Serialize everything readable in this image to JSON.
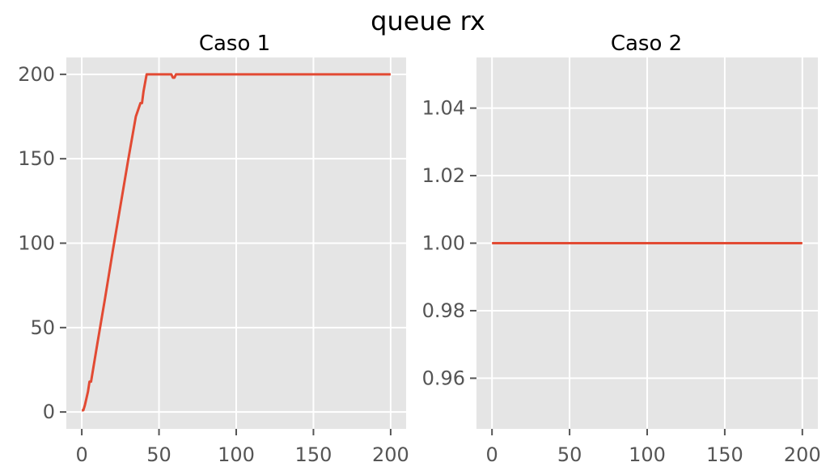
{
  "figure": {
    "suptitle": "queue rx"
  },
  "colors": {
    "series": "#E24A33",
    "background": "#E5E5E5",
    "grid": "#FFFFFF",
    "tick_text": "#555555"
  },
  "chart_data": [
    {
      "type": "line",
      "title": "Caso 1",
      "xlabel": "",
      "ylabel": "",
      "xlim": [
        -10,
        210
      ],
      "ylim": [
        -10,
        210
      ],
      "xticks": [
        0,
        50,
        100,
        150,
        200
      ],
      "yticks": [
        0,
        50,
        100,
        150,
        200
      ],
      "xtick_labels": [
        "0",
        "50",
        "100",
        "150",
        "200"
      ],
      "ytick_labels": [
        "0",
        "50",
        "100",
        "150",
        "200"
      ],
      "grid": true,
      "series": [
        {
          "color": "#E24A33",
          "x": [
            0,
            1,
            2,
            3,
            4,
            5,
            6,
            10,
            15,
            20,
            25,
            30,
            35,
            38,
            39,
            40,
            42,
            43,
            50,
            55,
            58,
            59,
            60,
            61,
            65,
            100,
            150,
            200
          ],
          "y": [
            1,
            1,
            4,
            8,
            12,
            18,
            18,
            40,
            67,
            95,
            122,
            149,
            175,
            183,
            183,
            190,
            200,
            200,
            200,
            200,
            200,
            198,
            198,
            200,
            200,
            200,
            200,
            200
          ]
        }
      ]
    },
    {
      "type": "line",
      "title": "Caso 2",
      "xlabel": "",
      "ylabel": "",
      "xlim": [
        -10,
        210
      ],
      "ylim": [
        0.945,
        1.055
      ],
      "xticks": [
        0,
        50,
        100,
        150,
        200
      ],
      "yticks": [
        0.96,
        0.98,
        1.0,
        1.02,
        1.04
      ],
      "xtick_labels": [
        "0",
        "50",
        "100",
        "150",
        "200"
      ],
      "ytick_labels": [
        "0.96",
        "0.98",
        "1.00",
        "1.02",
        "1.04"
      ],
      "grid": true,
      "series": [
        {
          "color": "#E24A33",
          "x": [
            0,
            200
          ],
          "y": [
            1.0,
            1.0
          ]
        }
      ]
    }
  ]
}
